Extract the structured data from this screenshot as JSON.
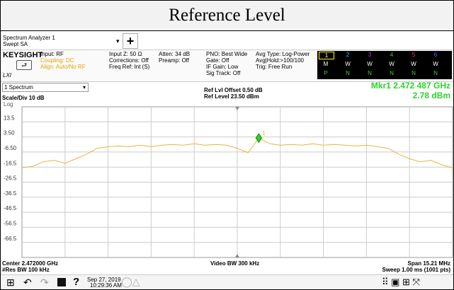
{
  "title": "Reference Level",
  "window": {
    "name": "Spectrum Analyzer 1",
    "mode": "Swept SA"
  },
  "header": {
    "brand": "KEYSIGHT",
    "logo_sub": "LXI",
    "col1": [
      "Input: RF",
      "Coupling: DC",
      "Align: Auto/No RF"
    ],
    "col2": [
      "Input Z: 50 Ω",
      "Corrections: Off",
      "Freq Ref: Int (S)"
    ],
    "col3": [
      "Atten: 34 dB",
      "Preamp: Off"
    ],
    "col4": [
      "PNO: Best Wide",
      "Gate: Off",
      "IF Gain: Low",
      "Sig Track: Off"
    ],
    "col5": [
      "Avg Type: Log-Power",
      "Avg|Hold:>100/100",
      "Trig: Free Run"
    ],
    "trace_numbers": [
      "1",
      "2",
      "3",
      "4",
      "5",
      "6"
    ],
    "trace_modes": [
      "M",
      "W",
      "W",
      "W",
      "W",
      "W"
    ],
    "trace_detectors": [
      "P",
      "N",
      "N",
      "N",
      "N",
      "N"
    ]
  },
  "chart_data": {
    "type": "line",
    "window_label": "1 Spectrum",
    "scale": "Scale/Div 10 dB",
    "scale_type": "Log",
    "ref_offset": "Ref Lvl Offset 0.50 dB",
    "ref_level": "Ref Level 23.50 dBm",
    "marker": {
      "label": "Mkr1 2.472 487 GHz",
      "value_label": "2.78 dBm",
      "number": "1",
      "index": 22
    },
    "ylim": [
      -76.5,
      23.5
    ],
    "yticks": [
      13.5,
      {
        "value": 3.5,
        "label": "3.50"
      },
      {
        "value": -6.5,
        "label": "-6.50"
      },
      -16.5,
      -26.5,
      -36.5,
      -46.5,
      -56.5,
      -66.5
    ],
    "grid": true,
    "series": [
      {
        "color": "#f0b040",
        "values": [
          -17,
          -16,
          -13,
          -12,
          -14,
          -11,
          -8,
          -4,
          -3,
          -2.5,
          -3,
          -2,
          -3,
          -2,
          -1.5,
          -2,
          -1,
          -2,
          -1.5,
          -2,
          -4,
          -7,
          2.78,
          -1,
          -2,
          -1.5,
          -2,
          -1,
          -2,
          -1.5,
          -2,
          -2.5,
          -2,
          -3,
          -4,
          -8,
          -11,
          -13,
          -12,
          -15,
          -17
        ]
      }
    ],
    "center": "Center 2.472000 GHz",
    "res_bw": "#Res BW 100 kHz",
    "video_bw": "Video BW 300 kHz",
    "span": "Span 15.21 MHz",
    "sweep": "Sweep 1.00 ms (1001 pts)"
  },
  "taskbar": {
    "date": "Sep 27, 2019",
    "time": "10:29:36 AM"
  }
}
